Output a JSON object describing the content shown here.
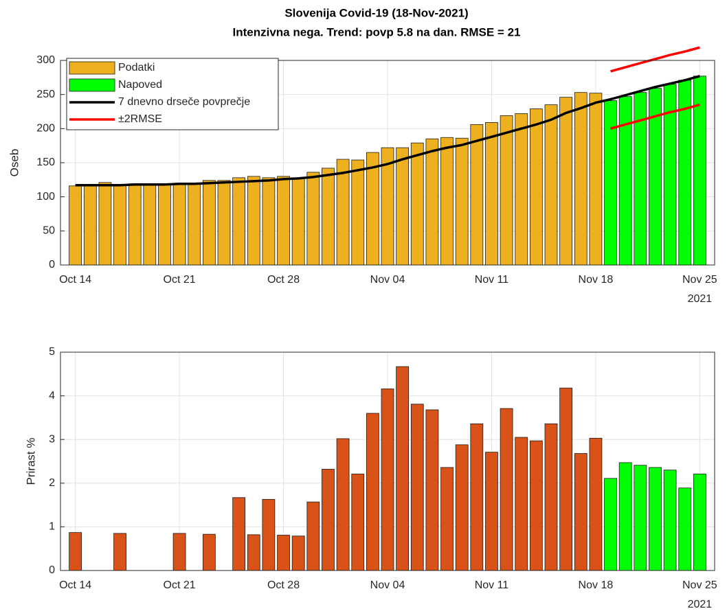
{
  "chart_data": [
    {
      "type": "bar",
      "title": "Slovenija Covid-19 (18-Nov-2021)",
      "subtitle": "Intenzivna nega. Trend: povp 5.8 na dan. RMSE = 21",
      "ylabel": "Oseb",
      "x": [
        "2021-10-14",
        "2021-10-15",
        "2021-10-16",
        "2021-10-17",
        "2021-10-18",
        "2021-10-19",
        "2021-10-20",
        "2021-10-21",
        "2021-10-22",
        "2021-10-23",
        "2021-10-24",
        "2021-10-25",
        "2021-10-26",
        "2021-10-27",
        "2021-10-28",
        "2021-10-29",
        "2021-10-30",
        "2021-10-31",
        "2021-11-01",
        "2021-11-02",
        "2021-11-03",
        "2021-11-04",
        "2021-11-05",
        "2021-11-06",
        "2021-11-07",
        "2021-11-08",
        "2021-11-09",
        "2021-11-10",
        "2021-11-11",
        "2021-11-12",
        "2021-11-13",
        "2021-11-14",
        "2021-11-15",
        "2021-11-16",
        "2021-11-17",
        "2021-11-18",
        "2021-11-19",
        "2021-11-20",
        "2021-11-21",
        "2021-11-22",
        "2021-11-23",
        "2021-11-24",
        "2021-11-25"
      ],
      "xlim": [
        "2021-10-13",
        "2021-11-26"
      ],
      "xticks": [
        {
          "value": "2021-10-14",
          "label": "Oct 14"
        },
        {
          "value": "2021-10-21",
          "label": "Oct 21"
        },
        {
          "value": "2021-10-28",
          "label": "Oct 28"
        },
        {
          "value": "2021-11-04",
          "label": "Nov 04"
        },
        {
          "value": "2021-11-11",
          "label": "Nov 11"
        },
        {
          "value": "2021-11-18",
          "label": "Nov 18"
        },
        {
          "value": "2021-11-25",
          "label": "Nov 25"
        }
      ],
      "x_year_label": "2021",
      "ylim": [
        0,
        300
      ],
      "yticks": [
        0,
        50,
        100,
        150,
        200,
        250,
        300
      ],
      "grid": true,
      "legend": "upper left",
      "series": [
        {
          "name": "Podatki",
          "type": "bar",
          "color": "#edb120",
          "values": [
            116,
            116,
            121,
            118,
            119,
            118,
            118,
            120,
            119,
            124,
            124,
            128,
            130,
            128,
            130,
            128,
            136,
            142,
            155,
            154,
            165,
            172,
            172,
            179,
            185,
            187,
            186,
            206,
            209,
            219,
            222,
            229,
            235,
            246,
            253,
            252,
            null,
            null,
            null,
            null,
            null,
            null,
            null
          ]
        },
        {
          "name": "Napoved",
          "type": "bar",
          "color": "#00ff00",
          "values": [
            null,
            null,
            null,
            null,
            null,
            null,
            null,
            null,
            null,
            null,
            null,
            null,
            null,
            null,
            null,
            null,
            null,
            null,
            null,
            null,
            null,
            null,
            null,
            null,
            null,
            null,
            null,
            null,
            null,
            null,
            null,
            null,
            null,
            null,
            null,
            null,
            241,
            247,
            253,
            259,
            265,
            271,
            277
          ]
        },
        {
          "name": "7 dnevno drseče povprečje",
          "type": "line",
          "color": "#000000",
          "values": [
            117,
            117,
            117,
            117,
            118,
            118,
            118,
            119,
            119,
            120,
            121,
            122,
            123,
            124,
            126,
            127,
            129,
            132,
            135,
            139,
            143,
            148,
            155,
            161,
            167,
            172,
            176,
            182,
            188,
            194,
            200,
            206,
            213,
            223,
            230,
            238,
            243,
            249,
            255,
            261,
            266,
            271,
            277
          ]
        },
        {
          "name": "±2RMSE",
          "type": "line",
          "color": "#ff0000",
          "values": [
            null,
            null,
            null,
            null,
            null,
            null,
            null,
            null,
            null,
            null,
            null,
            null,
            null,
            null,
            null,
            null,
            null,
            null,
            null,
            null,
            null,
            null,
            null,
            null,
            null,
            null,
            null,
            null,
            null,
            null,
            null,
            null,
            null,
            null,
            null,
            null,
            284,
            290,
            296,
            302,
            308,
            313,
            319
          ],
          "lower_values": [
            null,
            null,
            null,
            null,
            null,
            null,
            null,
            null,
            null,
            null,
            null,
            null,
            null,
            null,
            null,
            null,
            null,
            null,
            null,
            null,
            null,
            null,
            null,
            null,
            null,
            null,
            null,
            null,
            null,
            null,
            null,
            null,
            null,
            null,
            null,
            null,
            200,
            206,
            212,
            218,
            224,
            229,
            235
          ]
        }
      ]
    },
    {
      "type": "bar",
      "ylabel": "Prirast %",
      "x": [
        "2021-10-14",
        "2021-10-15",
        "2021-10-16",
        "2021-10-17",
        "2021-10-18",
        "2021-10-19",
        "2021-10-20",
        "2021-10-21",
        "2021-10-22",
        "2021-10-23",
        "2021-10-24",
        "2021-10-25",
        "2021-10-26",
        "2021-10-27",
        "2021-10-28",
        "2021-10-29",
        "2021-10-30",
        "2021-10-31",
        "2021-11-01",
        "2021-11-02",
        "2021-11-03",
        "2021-11-04",
        "2021-11-05",
        "2021-11-06",
        "2021-11-07",
        "2021-11-08",
        "2021-11-09",
        "2021-11-10",
        "2021-11-11",
        "2021-11-12",
        "2021-11-13",
        "2021-11-14",
        "2021-11-15",
        "2021-11-16",
        "2021-11-17",
        "2021-11-18",
        "2021-11-19",
        "2021-11-20",
        "2021-11-21",
        "2021-11-22",
        "2021-11-23",
        "2021-11-24",
        "2021-11-25"
      ],
      "xlim": [
        "2021-10-13",
        "2021-11-26"
      ],
      "xticks": [
        {
          "value": "2021-10-14",
          "label": "Oct 14"
        },
        {
          "value": "2021-10-21",
          "label": "Oct 21"
        },
        {
          "value": "2021-10-28",
          "label": "Oct 28"
        },
        {
          "value": "2021-11-04",
          "label": "Nov 04"
        },
        {
          "value": "2021-11-11",
          "label": "Nov 11"
        },
        {
          "value": "2021-11-18",
          "label": "Nov 18"
        },
        {
          "value": "2021-11-25",
          "label": "Nov 25"
        }
      ],
      "x_year_label": "2021",
      "ylim": [
        0,
        5
      ],
      "yticks": [
        0,
        1,
        2,
        3,
        4,
        5
      ],
      "grid": true,
      "series": [
        {
          "type": "bar",
          "color": "#d95319",
          "values": [
            0.87,
            0,
            0,
            0.85,
            0,
            0,
            0,
            0.85,
            0,
            0.83,
            0,
            1.67,
            0.82,
            1.63,
            0.81,
            0.79,
            1.57,
            2.32,
            3.02,
            2.21,
            3.6,
            4.16,
            4.67,
            3.81,
            3.68,
            2.36,
            2.88,
            3.36,
            2.71,
            3.71,
            3.05,
            2.97,
            3.36,
            4.18,
            2.68,
            3.03,
            null,
            null,
            null,
            null,
            null,
            null,
            null
          ]
        },
        {
          "type": "bar",
          "color": "#00ff00",
          "values": [
            null,
            null,
            null,
            null,
            null,
            null,
            null,
            null,
            null,
            null,
            null,
            null,
            null,
            null,
            null,
            null,
            null,
            null,
            null,
            null,
            null,
            null,
            null,
            null,
            null,
            null,
            null,
            null,
            null,
            null,
            null,
            null,
            null,
            null,
            null,
            null,
            2.11,
            2.47,
            2.41,
            2.36,
            2.3,
            1.89,
            2.21
          ]
        }
      ]
    }
  ]
}
